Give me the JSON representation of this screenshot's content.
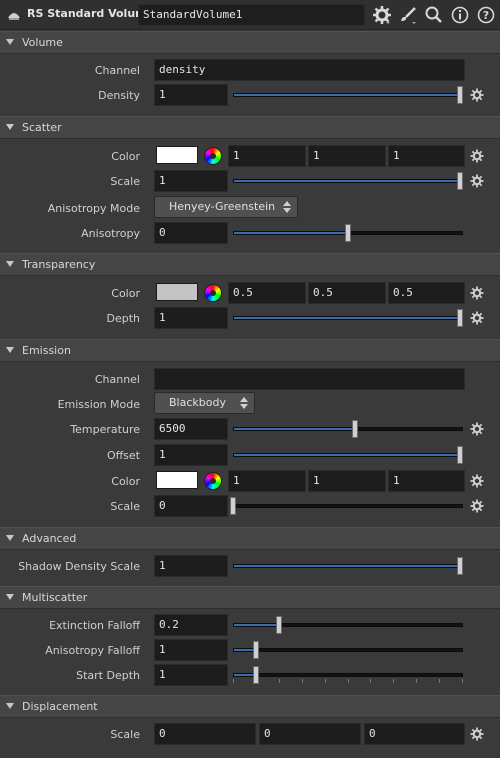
{
  "header": {
    "node_type": "RS Standard Volume",
    "node_name": "StandardVolume1",
    "icons": [
      "redshift-node-icon",
      "gear-icon",
      "brush-icon",
      "search-icon",
      "info-icon",
      "help-icon"
    ]
  },
  "volume": {
    "title": "Volume",
    "channel_label": "Channel",
    "channel_value": "density",
    "density_label": "Density",
    "density_value": "1",
    "density_slider": 1.0
  },
  "scatter": {
    "title": "Scatter",
    "color_label": "Color",
    "color_r": "1",
    "color_g": "1",
    "color_b": "1",
    "swatch_color": "#ffffff",
    "scale_label": "Scale",
    "scale_value": "1",
    "scale_slider": 1.0,
    "aniso_mode_label": "Anisotropy Mode",
    "aniso_mode_value": "Henyey-Greenstein",
    "aniso_label": "Anisotropy",
    "aniso_value": "0",
    "aniso_slider": 0.5
  },
  "transparency": {
    "title": "Transparency",
    "color_label": "Color",
    "color_r": "0.5",
    "color_g": "0.5",
    "color_b": "0.5",
    "swatch_color": "#c4c4c4",
    "depth_label": "Depth",
    "depth_value": "1",
    "depth_slider": 1.0
  },
  "emission": {
    "title": "Emission",
    "channel_label": "Channel",
    "channel_value": "",
    "mode_label": "Emission Mode",
    "mode_value": "Blackbody",
    "temp_label": "Temperature",
    "temp_value": "6500",
    "temp_slider": 0.53,
    "offset_label": "Offset",
    "offset_value": "1",
    "offset_slider": 1.0,
    "color_label": "Color",
    "color_r": "1",
    "color_g": "1",
    "color_b": "1",
    "swatch_color": "#ffffff",
    "scale_label": "Scale",
    "scale_value": "0",
    "scale_slider": 0.0
  },
  "advanced": {
    "title": "Advanced",
    "shadow_label": "Shadow Density Scale",
    "shadow_value": "1",
    "shadow_slider": 1.0
  },
  "multiscatter": {
    "title": "Multiscatter",
    "ext_label": "Extinction Falloff",
    "ext_value": "0.2",
    "ext_slider": 0.2,
    "aniso_label": "Anisotropy Falloff",
    "aniso_value": "1",
    "aniso_slider": 0.1,
    "start_label": "Start Depth",
    "start_value": "1",
    "start_slider": 0.1
  },
  "displacement": {
    "title": "Displacement",
    "scale_label": "Scale",
    "scale_x": "0",
    "scale_y": "0",
    "scale_z": "0"
  },
  "colors": {
    "accent": "#3e6bb0",
    "panel": "#3a3a3a",
    "field": "#1c1c1c"
  }
}
